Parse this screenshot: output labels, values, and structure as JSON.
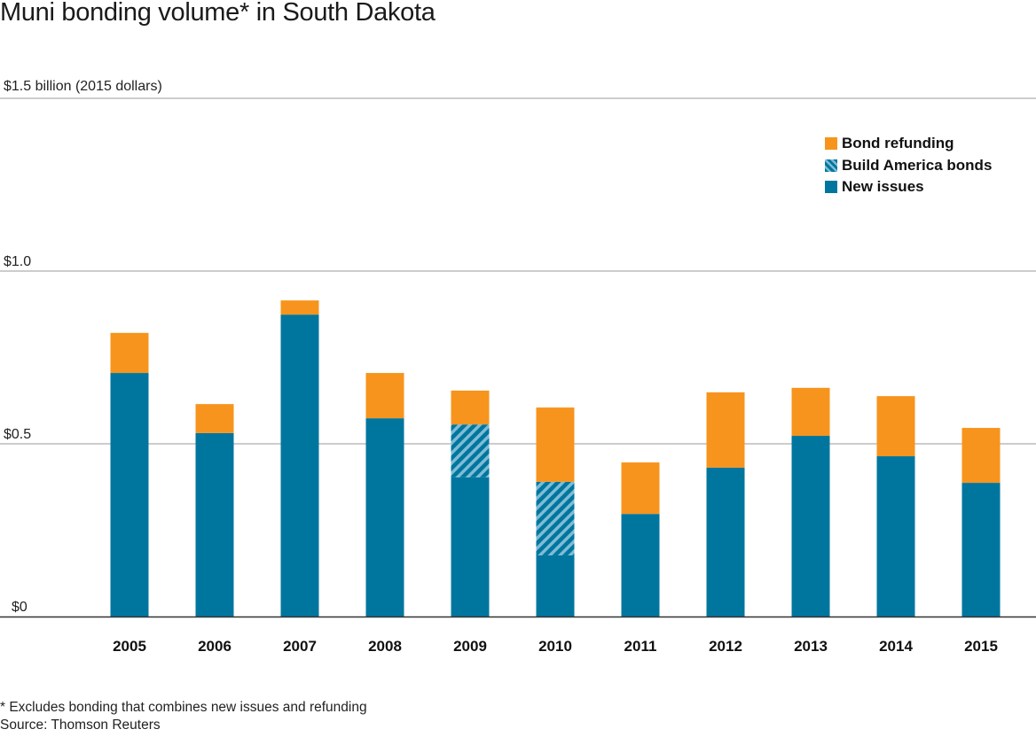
{
  "colors": {
    "new_issues": "#00769f",
    "build_america": "#00769f",
    "build_america_stripe": "#7fbcd5",
    "bond_refunding": "#f7941d",
    "gridline": "#9a9a9a",
    "baseline": "#333333"
  },
  "chart_data": {
    "type": "bar",
    "stacked": true,
    "title": "Muni bonding volume* in South Dakota",
    "ylabel": "$1.5 billion (2015 dollars)",
    "xlabel": "",
    "ylim": [
      0,
      1.5
    ],
    "yticks": [
      {
        "value": 0,
        "label": "$0"
      },
      {
        "value": 0.5,
        "label": "$0.5"
      },
      {
        "value": 1.0,
        "label": "$1.0"
      },
      {
        "value": 1.5,
        "label": "$1.5"
      }
    ],
    "grid": true,
    "legend_position": "top-right",
    "categories": [
      "2005",
      "2006",
      "2007",
      "2008",
      "2009",
      "2010",
      "2011",
      "2012",
      "2013",
      "2014",
      "2015"
    ],
    "series": [
      {
        "name": "New issues",
        "key": "new_issues",
        "values": [
          0.705,
          0.531,
          0.874,
          0.574,
          0.403,
          0.177,
          0.297,
          0.431,
          0.523,
          0.464,
          0.387
        ]
      },
      {
        "name": "Build America bonds",
        "key": "build_america",
        "values": [
          0,
          0,
          0,
          0,
          0.153,
          0.213,
          0,
          0,
          0,
          0,
          0
        ]
      },
      {
        "name": "Bond refunding",
        "key": "bond_refunding",
        "values": [
          0.116,
          0.084,
          0.041,
          0.131,
          0.098,
          0.215,
          0.149,
          0.218,
          0.139,
          0.174,
          0.159
        ]
      }
    ],
    "legend": [
      {
        "name": "Bond refunding",
        "key": "bond_refunding"
      },
      {
        "name": "Build America bonds",
        "key": "build_america"
      },
      {
        "name": "New issues",
        "key": "new_issues"
      }
    ],
    "footnote": "* Excludes bonding that combines new issues and refunding",
    "source": "Source: Thomson Reuters",
    "unit": "billion (2015 dollars)"
  }
}
